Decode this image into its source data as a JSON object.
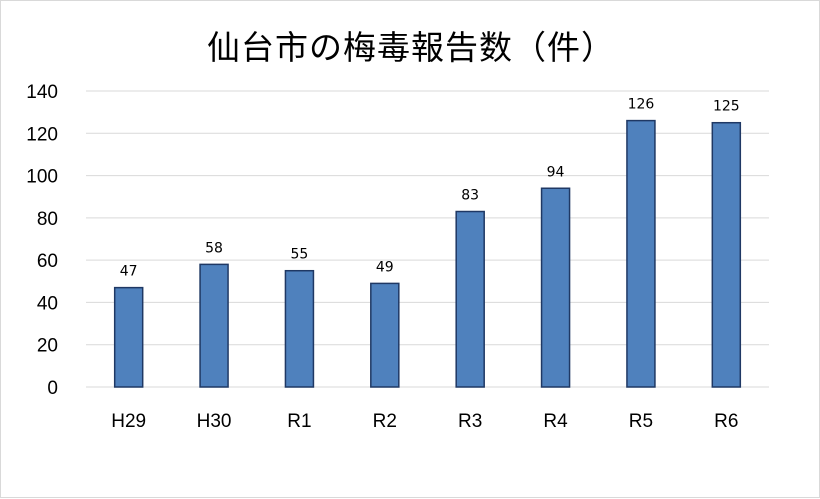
{
  "chart_data": {
    "type": "bar",
    "title": "仙台市の梅毒報告数（件）",
    "xlabel": "",
    "ylabel": "",
    "categories": [
      "H29",
      "H30",
      "R1",
      "R2",
      "R3",
      "R4",
      "R5",
      "R6"
    ],
    "values": [
      47,
      58,
      55,
      49,
      83,
      94,
      126,
      125
    ],
    "ylim": [
      0,
      140
    ],
    "y_ticks": [
      0,
      20,
      40,
      60,
      80,
      100,
      120,
      140
    ],
    "grid": true,
    "legend": "none",
    "bar_color": "#4f81bd",
    "bar_edge_color": "#1f3864",
    "grid_color": "#d9d9d9"
  }
}
